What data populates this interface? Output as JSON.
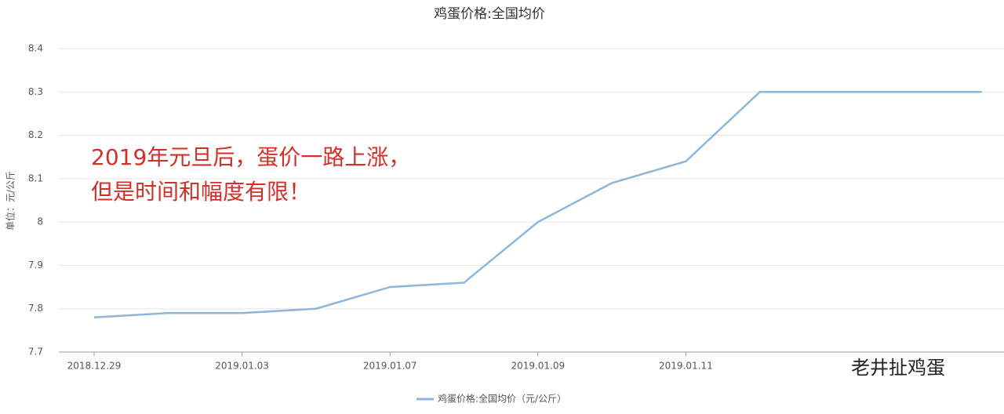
{
  "chart_data": {
    "type": "line",
    "title": "鸡蛋价格:全国均价",
    "y_label": "单位：元/公斤",
    "categories": [
      "2018.12.29",
      null,
      "2019.01.03",
      null,
      "2019.01.07",
      null,
      "2019.01.09",
      null,
      "2019.01.11",
      null,
      null,
      null,
      null
    ],
    "series": [
      {
        "name": "鸡蛋价格:全国均价（元/公斤）",
        "color": "#8fb6d8",
        "values": [
          7.78,
          7.79,
          7.79,
          7.8,
          7.85,
          7.86,
          8.0,
          8.09,
          8.14,
          8.3,
          8.3,
          8.3,
          8.3
        ]
      }
    ],
    "ylim": [
      7.7,
      8.4
    ],
    "yticks": [
      7.7,
      7.8,
      7.9,
      8,
      8.1,
      8.2,
      8.3,
      8.4
    ],
    "grid": true,
    "annotations": [
      "2019年元旦后，蛋价一路上涨，",
      "但是时间和幅度有限！"
    ],
    "watermark": "老井扯鸡蛋"
  }
}
